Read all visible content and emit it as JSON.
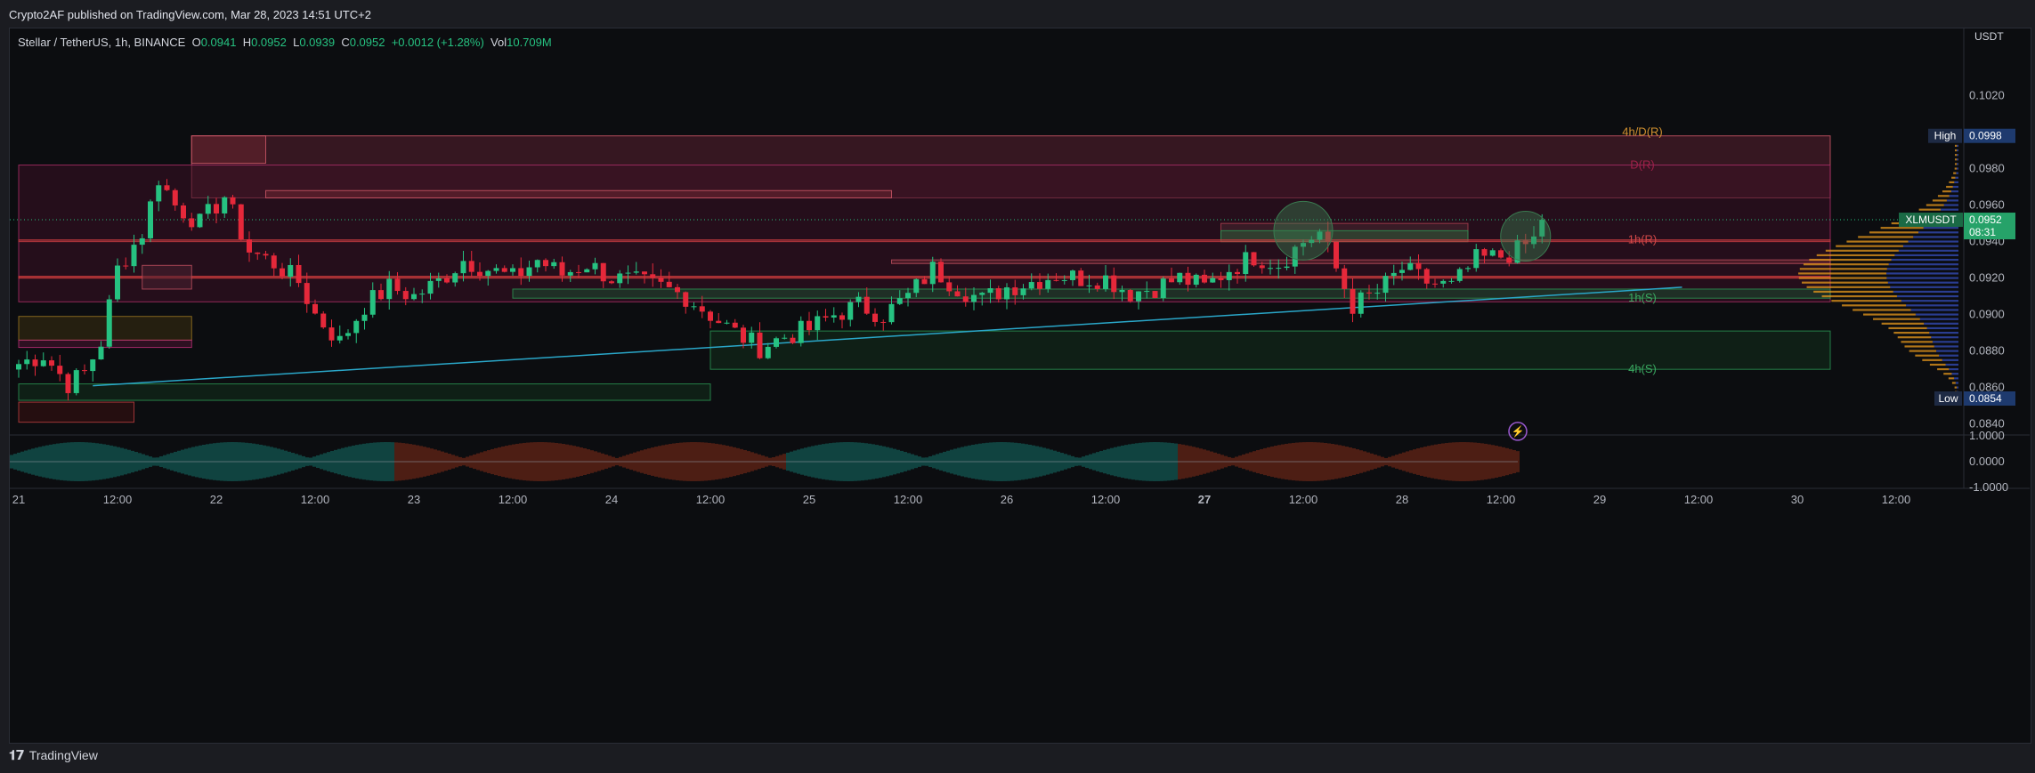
{
  "header": {
    "published_text": "Crypto2AF published on TradingView.com, Mar 28, 2023 14:51 UTC+2"
  },
  "legend": {
    "symbol": "Stellar / TetherUS, 1h, BINANCE",
    "o_label": "O",
    "o_value": "0.0941",
    "h_label": "H",
    "h_value": "0.0952",
    "l_label": "L",
    "l_value": "0.0939",
    "c_label": "C",
    "c_value": "0.0952",
    "change": "+0.0012 (+1.28%)",
    "vol_label": "Vol",
    "vol_value": "10.709M"
  },
  "price_axis": {
    "currency": "USDT"
  },
  "tags": {
    "high_label": "High",
    "high_value": "0.0998",
    "low_label": "Low",
    "low_value": "0.0854",
    "symbol_label": "XLMUSDT",
    "last_value": "0.0952",
    "countdown": "08:31"
  },
  "zone_labels": {
    "z4hD": "4h/D(R)",
    "z1hR": "1h(R)",
    "z1hS": "1h(S)",
    "z4hS": "4h(S)",
    "zD": "D(R)"
  },
  "oscillator": {
    "ticks": [
      "1.0000",
      "0.0000",
      "-1.0000"
    ]
  },
  "footer": {
    "brand": "TradingView"
  },
  "colors": {
    "up": "#26c281",
    "down": "#e5283a",
    "background": "#0c0d10",
    "trendline": "#2aa7c9"
  },
  "chart_data": {
    "type": "candlestick",
    "title": "Stellar / TetherUS, 1h, BINANCE",
    "y_ticks": [
      0.084,
      0.086,
      0.088,
      0.09,
      0.092,
      0.094,
      0.096,
      0.098,
      0.102
    ],
    "ylim": [
      0.0834,
      0.1052
    ],
    "x_ticks": [
      {
        "t": 0,
        "label": "21"
      },
      {
        "t": 12,
        "label": "12:00"
      },
      {
        "t": 24,
        "label": "22"
      },
      {
        "t": 36,
        "label": "12:00"
      },
      {
        "t": 48,
        "label": "23"
      },
      {
        "t": 60,
        "label": "12:00"
      },
      {
        "t": 72,
        "label": "24"
      },
      {
        "t": 84,
        "label": "12:00"
      },
      {
        "t": 96,
        "label": "25"
      },
      {
        "t": 108,
        "label": "12:00"
      },
      {
        "t": 120,
        "label": "26"
      },
      {
        "t": 132,
        "label": "12:00"
      },
      {
        "t": 144,
        "label": "27"
      },
      {
        "t": 156,
        "label": "12:00"
      },
      {
        "t": 168,
        "label": "28"
      },
      {
        "t": 180,
        "label": "12:00"
      },
      {
        "t": 192,
        "label": "29"
      },
      {
        "t": 204,
        "label": "12:00"
      },
      {
        "t": 216,
        "label": "30"
      },
      {
        "t": 228,
        "label": "12:00"
      }
    ],
    "close_anchors": [
      [
        0,
        0.0873
      ],
      [
        3,
        0.0878
      ],
      [
        6,
        0.0862
      ],
      [
        8,
        0.0868
      ],
      [
        10,
        0.0885
      ],
      [
        12,
        0.0925
      ],
      [
        15,
        0.0945
      ],
      [
        17,
        0.0975
      ],
      [
        19,
        0.096
      ],
      [
        22,
        0.095
      ],
      [
        25,
        0.0965
      ],
      [
        28,
        0.0935
      ],
      [
        31,
        0.0928
      ],
      [
        34,
        0.0918
      ],
      [
        36,
        0.09
      ],
      [
        39,
        0.0885
      ],
      [
        42,
        0.0905
      ],
      [
        45,
        0.0915
      ],
      [
        48,
        0.091
      ],
      [
        51,
        0.0918
      ],
      [
        54,
        0.093
      ],
      [
        57,
        0.0925
      ],
      [
        60,
        0.092
      ],
      [
        63,
        0.093
      ],
      [
        66,
        0.0922
      ],
      [
        69,
        0.0928
      ],
      [
        72,
        0.092
      ],
      [
        75,
        0.0918
      ],
      [
        78,
        0.0915
      ],
      [
        81,
        0.091
      ],
      [
        84,
        0.09
      ],
      [
        87,
        0.089
      ],
      [
        90,
        0.0882
      ],
      [
        93,
        0.0888
      ],
      [
        96,
        0.0892
      ],
      [
        99,
        0.09
      ],
      [
        102,
        0.0905
      ],
      [
        105,
        0.09
      ],
      [
        108,
        0.091
      ],
      [
        111,
        0.0925
      ],
      [
        114,
        0.0915
      ],
      [
        117,
        0.0908
      ],
      [
        120,
        0.0915
      ],
      [
        123,
        0.0918
      ],
      [
        126,
        0.0922
      ],
      [
        129,
        0.092
      ],
      [
        132,
        0.092
      ],
      [
        135,
        0.0912
      ],
      [
        138,
        0.0915
      ],
      [
        141,
        0.092
      ],
      [
        144,
        0.0915
      ],
      [
        147,
        0.0925
      ],
      [
        150,
        0.0932
      ],
      [
        153,
        0.0928
      ],
      [
        156,
        0.094
      ],
      [
        158,
        0.0945
      ],
      [
        160,
        0.0925
      ],
      [
        162,
        0.0905
      ],
      [
        165,
        0.0912
      ],
      [
        168,
        0.0925
      ],
      [
        171,
        0.0918
      ],
      [
        174,
        0.0915
      ],
      [
        177,
        0.093
      ],
      [
        180,
        0.0932
      ],
      [
        182,
        0.0935
      ],
      [
        184,
        0.0941
      ],
      [
        185,
        0.0952
      ]
    ],
    "zones": [
      {
        "t0": 21,
        "t1": 220,
        "top": 0.0998,
        "bottom": 0.0964,
        "fill": "#5a2030",
        "stroke": "#d35a6a"
      },
      {
        "t0": 0,
        "t1": 220,
        "top": 0.0982,
        "bottom": 0.0907,
        "fill": "#3a1024",
        "stroke": "#b0306a"
      },
      {
        "t0": 21,
        "t1": 30,
        "top": 0.0998,
        "bottom": 0.0983,
        "fill": "#6a2530",
        "stroke": "#d35a6a"
      },
      {
        "t0": 30,
        "t1": 106,
        "top": 0.0968,
        "bottom": 0.0964,
        "fill": "#6a2530",
        "stroke": "#d35a6a"
      },
      {
        "t0": 146,
        "t1": 176,
        "top": 0.095,
        "bottom": 0.094,
        "fill": "#4a2630",
        "stroke": "#b04050"
      },
      {
        "t0": 146,
        "t1": 176,
        "top": 0.0946,
        "bottom": 0.094,
        "fill": "#2c5a36",
        "stroke": "#2c9a55"
      },
      {
        "t0": 0,
        "t1": 220,
        "top": 0.0941,
        "bottom": 0.094,
        "fill": "#c03a40",
        "stroke": "#c03a40"
      },
      {
        "t0": 106,
        "t1": 220,
        "top": 0.093,
        "bottom": 0.0928,
        "fill": "#6a2530",
        "stroke": "#c05060"
      },
      {
        "t0": 0,
        "t1": 220,
        "top": 0.0921,
        "bottom": 0.092,
        "fill": "#e04040",
        "stroke": "#e04040"
      },
      {
        "t0": 60,
        "t1": 220,
        "top": 0.0914,
        "bottom": 0.0909,
        "fill": "#1c4a30",
        "stroke": "#2c9a55"
      },
      {
        "t0": 84,
        "t1": 220,
        "top": 0.0891,
        "bottom": 0.087,
        "fill": "#12301c",
        "stroke": "#2c9a55"
      },
      {
        "t0": 0,
        "t1": 84,
        "top": 0.0862,
        "bottom": 0.0853,
        "fill": "#12301c",
        "stroke": "#2c9a55"
      },
      {
        "t0": 0,
        "t1": 21,
        "top": 0.0899,
        "bottom": 0.0886,
        "fill": "#3a3010",
        "stroke": "#a07a20"
      },
      {
        "t0": 0,
        "t1": 21,
        "top": 0.0886,
        "bottom": 0.0882,
        "fill": "#4a1430",
        "stroke": "#c0307a"
      },
      {
        "t0": 15,
        "t1": 21,
        "top": 0.0927,
        "bottom": 0.0914,
        "fill": "#4a2030",
        "stroke": "#c05060"
      },
      {
        "t0": 0,
        "t1": 14,
        "top": 0.0852,
        "bottom": 0.0841,
        "fill": "#3a1010",
        "stroke": "#c04040"
      }
    ],
    "trendline": [
      [
        9,
        0.0861
      ],
      [
        202,
        0.0915
      ]
    ],
    "volume_profile_note": "orange/blue histogram at right"
  }
}
